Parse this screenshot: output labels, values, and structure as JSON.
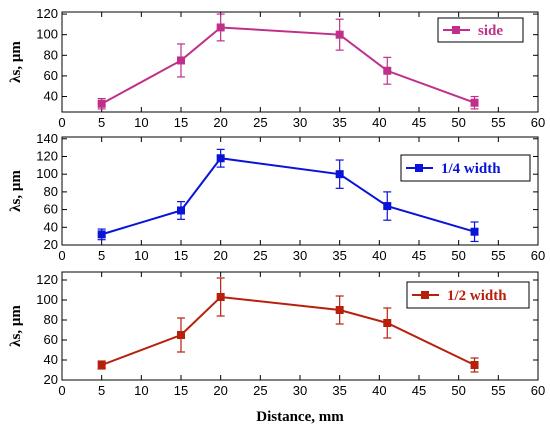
{
  "chart_data": [
    {
      "type": "line",
      "ylabel": "λs, μm",
      "xlim": [
        0,
        60
      ],
      "ylim": [
        25,
        122
      ],
      "x_ticks": [
        0,
        5,
        10,
        15,
        20,
        25,
        30,
        35,
        40,
        45,
        50,
        55,
        60
      ],
      "y_ticks": [
        40,
        60,
        80,
        100,
        120
      ],
      "legend_position": "top-right",
      "series": [
        {
          "name": "side",
          "color": "#c0308a",
          "x": [
            5,
            15,
            20,
            35,
            41,
            52
          ],
          "y": [
            33,
            75,
            107,
            100,
            65,
            34
          ],
          "err": [
            5,
            16,
            13,
            15,
            13,
            6
          ]
        }
      ]
    },
    {
      "type": "line",
      "ylabel": "λs, μm",
      "xlim": [
        0,
        60
      ],
      "ylim": [
        20,
        142
      ],
      "x_ticks": [
        0,
        5,
        10,
        15,
        20,
        25,
        30,
        35,
        40,
        45,
        50,
        55,
        60
      ],
      "y_ticks": [
        20,
        40,
        60,
        80,
        100,
        120,
        140
      ],
      "legend_position": "top-right",
      "series": [
        {
          "name": "1/4 width",
          "color": "#0a14d8",
          "x": [
            5,
            15,
            20,
            35,
            41,
            52
          ],
          "y": [
            32,
            59,
            118,
            100,
            64,
            35
          ],
          "err": [
            6,
            10,
            10,
            16,
            16,
            11
          ]
        }
      ]
    },
    {
      "type": "line",
      "xlabel": "Distance, mm",
      "ylabel": "λs, μm",
      "xlim": [
        0,
        60
      ],
      "ylim": [
        20,
        128
      ],
      "x_ticks": [
        0,
        5,
        10,
        15,
        20,
        25,
        30,
        35,
        40,
        45,
        50,
        55,
        60
      ],
      "y_ticks": [
        20,
        40,
        60,
        80,
        100,
        120
      ],
      "legend_position": "top-right",
      "series": [
        {
          "name": "1/2 width",
          "color": "#b8200e",
          "x": [
            5,
            15,
            20,
            35,
            41,
            52
          ],
          "y": [
            35,
            65,
            103,
            90,
            77,
            35
          ],
          "err": [
            4,
            17,
            19,
            14,
            15,
            7
          ]
        }
      ]
    }
  ]
}
